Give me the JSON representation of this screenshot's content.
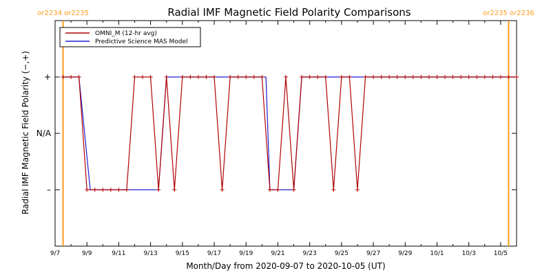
{
  "chart_data": {
    "type": "line",
    "title": "Radial IMF Magnetic Field Polarity Comparisons",
    "xlabel": "Month/Day from 2020-09-07 to 2020-10-05 (UT)",
    "ylabel": "Radial IMF Magnetic Field Polarity (−,+)",
    "xlim": [
      "2020-09-07",
      "2020-10-06"
    ],
    "ylim": [
      -2,
      2
    ],
    "x_tick_labels": [
      "9/7",
      "9/9",
      "9/11",
      "9/13",
      "9/15",
      "9/17",
      "9/19",
      "9/21",
      "9/23",
      "9/25",
      "9/27",
      "9/29",
      "10/1",
      "10/3",
      "10/5"
    ],
    "y_ticks": [
      {
        "value": 1,
        "label": "+"
      },
      {
        "value": 0,
        "label": "N/A"
      },
      {
        "value": -1,
        "label": "–"
      }
    ],
    "carrington_markers": [
      {
        "x": "2020-09-07T12:00",
        "label": "or2234 or2235",
        "color": "#ff9a1a"
      },
      {
        "x": "2020-10-05T12:00",
        "label": "or2235 or2236",
        "color": "#ff9a1a"
      }
    ],
    "legend_position": "top-left",
    "series": [
      {
        "name": "OMNI_M (12-hr avg)",
        "color": "#b00000",
        "markers": true,
        "points": [
          [
            "2020-09-07T12:00",
            1
          ],
          [
            "2020-09-08T00:00",
            1
          ],
          [
            "2020-09-08T12:00",
            1
          ],
          [
            "2020-09-09T00:00",
            -1
          ],
          [
            "2020-09-09T12:00",
            -1
          ],
          [
            "2020-09-10T00:00",
            -1
          ],
          [
            "2020-09-10T12:00",
            -1
          ],
          [
            "2020-09-11T00:00",
            -1
          ],
          [
            "2020-09-11T12:00",
            -1
          ],
          [
            "2020-09-12T00:00",
            1
          ],
          [
            "2020-09-12T12:00",
            1
          ],
          [
            "2020-09-13T00:00",
            1
          ],
          [
            "2020-09-13T12:00",
            -1
          ],
          [
            "2020-09-14T00:00",
            1
          ],
          [
            "2020-09-14T12:00",
            -1
          ],
          [
            "2020-09-15T00:00",
            1
          ],
          [
            "2020-09-15T12:00",
            1
          ],
          [
            "2020-09-16T00:00",
            1
          ],
          [
            "2020-09-16T12:00",
            1
          ],
          [
            "2020-09-17T00:00",
            1
          ],
          [
            "2020-09-17T12:00",
            -1
          ],
          [
            "2020-09-18T00:00",
            1
          ],
          [
            "2020-09-18T12:00",
            1
          ],
          [
            "2020-09-19T00:00",
            1
          ],
          [
            "2020-09-19T12:00",
            1
          ],
          [
            "2020-09-20T00:00",
            1
          ],
          [
            "2020-09-20T12:00",
            -1
          ],
          [
            "2020-09-21T00:00",
            -1
          ],
          [
            "2020-09-21T12:00",
            1
          ],
          [
            "2020-09-22T00:00",
            -1
          ],
          [
            "2020-09-22T12:00",
            1
          ],
          [
            "2020-09-23T00:00",
            1
          ],
          [
            "2020-09-23T12:00",
            1
          ],
          [
            "2020-09-24T00:00",
            1
          ],
          [
            "2020-09-24T12:00",
            -1
          ],
          [
            "2020-09-25T00:00",
            1
          ],
          [
            "2020-09-25T12:00",
            1
          ],
          [
            "2020-09-26T00:00",
            -1
          ],
          [
            "2020-09-26T12:00",
            1
          ],
          [
            "2020-09-27T00:00",
            1
          ],
          [
            "2020-09-27T12:00",
            1
          ],
          [
            "2020-09-28T00:00",
            1
          ],
          [
            "2020-09-28T12:00",
            1
          ],
          [
            "2020-09-29T00:00",
            1
          ],
          [
            "2020-09-29T12:00",
            1
          ],
          [
            "2020-09-30T00:00",
            1
          ],
          [
            "2020-09-30T12:00",
            1
          ],
          [
            "2020-10-01T00:00",
            1
          ],
          [
            "2020-10-01T12:00",
            1
          ],
          [
            "2020-10-02T00:00",
            1
          ],
          [
            "2020-10-02T12:00",
            1
          ],
          [
            "2020-10-03T00:00",
            1
          ],
          [
            "2020-10-03T12:00",
            1
          ],
          [
            "2020-10-04T00:00",
            1
          ],
          [
            "2020-10-04T12:00",
            1
          ],
          [
            "2020-10-05T00:00",
            1
          ],
          [
            "2020-10-05T12:00",
            1
          ],
          [
            "2020-10-06T00:00",
            1
          ]
        ]
      },
      {
        "name": "Predictive Science MAS Model",
        "color": "#1a1ad0",
        "markers": false,
        "points": [
          [
            "2020-09-07T12:00",
            1
          ],
          [
            "2020-09-08T12:00",
            1
          ],
          [
            "2020-09-09T05:00",
            -1
          ],
          [
            "2020-09-13T12:00",
            -1
          ],
          [
            "2020-09-14T00:00",
            1
          ],
          [
            "2020-09-20T06:00",
            1
          ],
          [
            "2020-09-20T12:00",
            -1
          ],
          [
            "2020-09-22T00:00",
            -1
          ],
          [
            "2020-09-22T12:00",
            1
          ],
          [
            "2020-10-06T00:00",
            1
          ]
        ]
      }
    ]
  }
}
